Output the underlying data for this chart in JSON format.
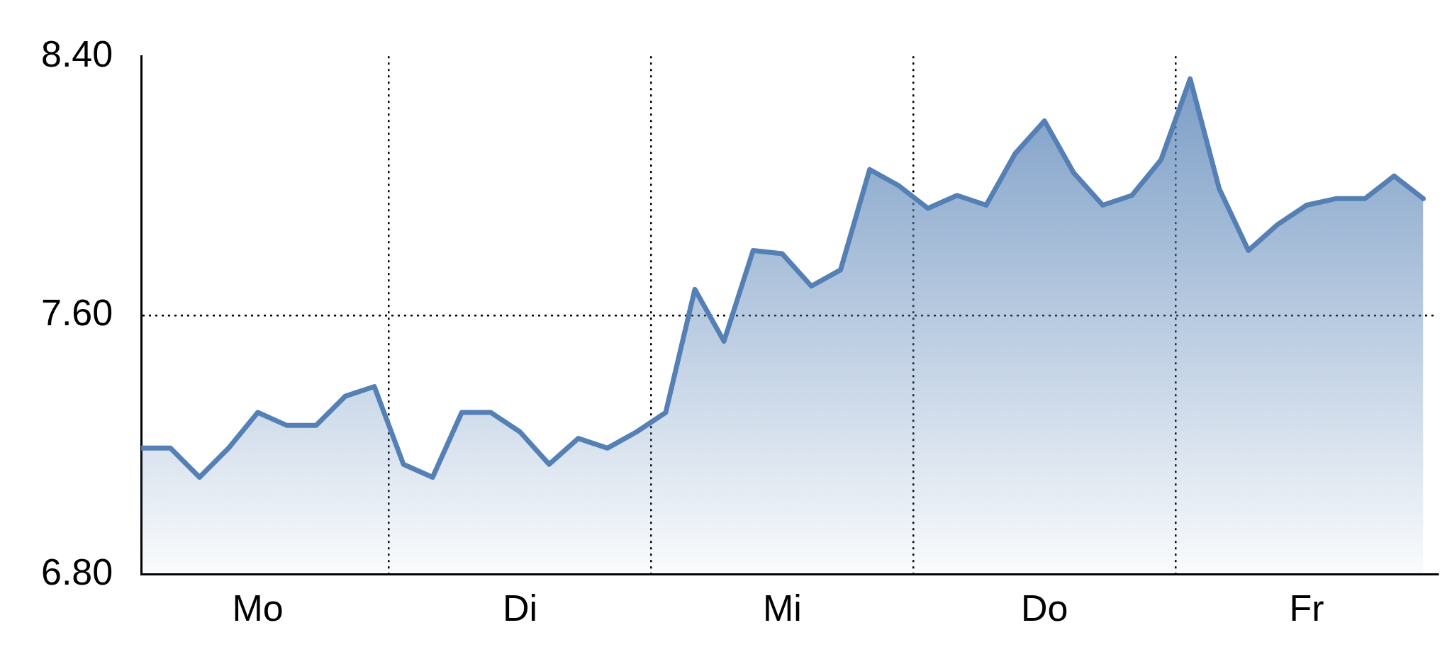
{
  "chart_data": {
    "type": "area",
    "categories": [
      null,
      null,
      null,
      null,
      "Mo",
      null,
      null,
      null,
      null,
      null,
      null,
      null,
      null,
      "Di",
      null,
      null,
      null,
      null,
      null,
      null,
      null,
      null,
      "Mi",
      null,
      null,
      null,
      null,
      null,
      null,
      null,
      null,
      "Do",
      null,
      null,
      null,
      null,
      null,
      null,
      null,
      null,
      "Fr",
      null,
      null,
      null,
      null
    ],
    "series": [
      {
        "color": "#5480b5",
        "values": [
          7.19,
          7.19,
          7.1,
          7.19,
          7.3,
          7.26,
          7.26,
          7.35,
          7.38,
          7.14,
          7.1,
          7.3,
          7.3,
          7.24,
          7.14,
          7.22,
          7.19,
          7.24,
          7.3,
          7.68,
          7.52,
          7.8,
          7.79,
          7.69,
          7.74,
          8.05,
          8.0,
          7.93,
          7.97,
          7.94,
          8.1,
          8.2,
          8.04,
          7.94,
          7.97,
          8.08,
          8.33,
          7.99,
          7.8,
          7.88,
          7.94,
          7.96,
          7.96,
          8.03,
          7.96
        ]
      }
    ],
    "ylim": [
      6.8,
      8.4
    ],
    "yticks": [
      {
        "value": 6.8,
        "label": "6.80"
      },
      {
        "value": 7.6,
        "label": "7.60"
      },
      {
        "value": 8.4,
        "label": "8.40"
      }
    ],
    "grid": true,
    "legend": false,
    "line_style": "solid",
    "marker": "none"
  }
}
